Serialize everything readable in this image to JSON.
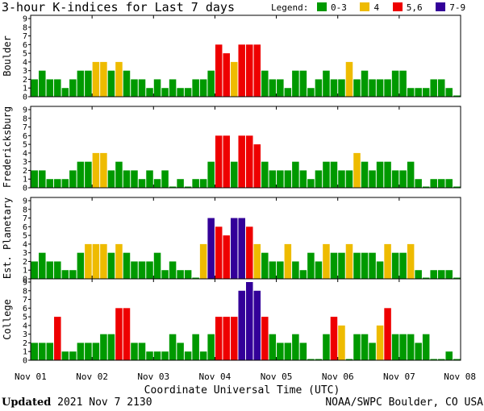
{
  "title": "3-hour K-indices for Last 7 days",
  "legend": {
    "label": "Legend:",
    "items": [
      {
        "text": "0-3",
        "color": "#009900"
      },
      {
        "text": "4",
        "color": "#eebb00"
      },
      {
        "text": "5,6",
        "color": "#ee0000"
      },
      {
        "text": "7-9",
        "color": "#330099"
      }
    ]
  },
  "x_axis_title": "Coordinate Universal Time (UTC)",
  "footer": {
    "updated_label": "Updated",
    "updated_value": "2021 Nov  7 2130",
    "credit": "NOAA/SWPC Boulder, CO USA"
  },
  "chart_data": {
    "type": "bar",
    "x_tick_labels": [
      "Nov 01",
      "Nov 02",
      "Nov 03",
      "Nov 04",
      "Nov 05",
      "Nov 06",
      "Nov 07",
      "Nov 08"
    ],
    "y_ticks": [
      0,
      1,
      2,
      3,
      4,
      5,
      6,
      7,
      8,
      9
    ],
    "ylim": [
      0,
      9
    ],
    "intervals_per_day": 8,
    "days": 7,
    "grid": false,
    "color_scale": {
      "0-3": "#009900",
      "4": "#eebb00",
      "5,6": "#ee0000",
      "7-9": "#330099"
    },
    "panels": [
      {
        "name": "Boulder",
        "values": [
          2,
          3,
          2,
          2,
          1,
          2,
          3,
          3,
          4,
          4,
          3,
          4,
          3,
          2,
          2,
          1,
          2,
          1,
          2,
          1,
          1,
          2,
          2,
          3,
          6,
          5,
          4,
          6,
          6,
          6,
          3,
          2,
          2,
          1,
          3,
          3,
          1,
          2,
          3,
          2,
          2,
          4,
          2,
          3,
          2,
          2,
          2,
          3,
          3,
          1,
          1,
          1,
          2,
          2,
          1,
          0
        ]
      },
      {
        "name": "Fredericksburg",
        "values": [
          2,
          2,
          1,
          1,
          1,
          2,
          3,
          3,
          4,
          4,
          2,
          3,
          2,
          2,
          1,
          2,
          1,
          2,
          0,
          1,
          0,
          1,
          1,
          3,
          6,
          6,
          3,
          6,
          6,
          5,
          3,
          2,
          2,
          2,
          3,
          2,
          1,
          2,
          3,
          3,
          2,
          2,
          4,
          3,
          2,
          3,
          3,
          2,
          2,
          3,
          1,
          0,
          1,
          1,
          1,
          0
        ]
      },
      {
        "name": "Est. Planetary",
        "values": [
          2,
          3,
          2,
          2,
          1,
          1,
          3,
          4,
          4,
          4,
          3,
          4,
          3,
          2,
          2,
          2,
          3,
          1,
          2,
          1,
          1,
          0,
          4,
          7,
          6,
          5,
          7,
          7,
          6,
          4,
          3,
          2,
          2,
          4,
          2,
          1,
          3,
          2,
          4,
          3,
          3,
          4,
          3,
          3,
          3,
          2,
          4,
          3,
          3,
          4,
          1,
          0,
          1,
          1,
          1,
          0
        ]
      },
      {
        "name": "College",
        "values": [
          2,
          2,
          2,
          5,
          1,
          1,
          2,
          2,
          2,
          3,
          3,
          6,
          6,
          2,
          2,
          1,
          1,
          1,
          3,
          2,
          1,
          3,
          1,
          3,
          5,
          5,
          5,
          8,
          9,
          8,
          5,
          3,
          2,
          2,
          3,
          2,
          0,
          0,
          3,
          5,
          4,
          0,
          3,
          3,
          2,
          4,
          6,
          3,
          3,
          3,
          2,
          3,
          0,
          0,
          1,
          0
        ]
      }
    ]
  }
}
